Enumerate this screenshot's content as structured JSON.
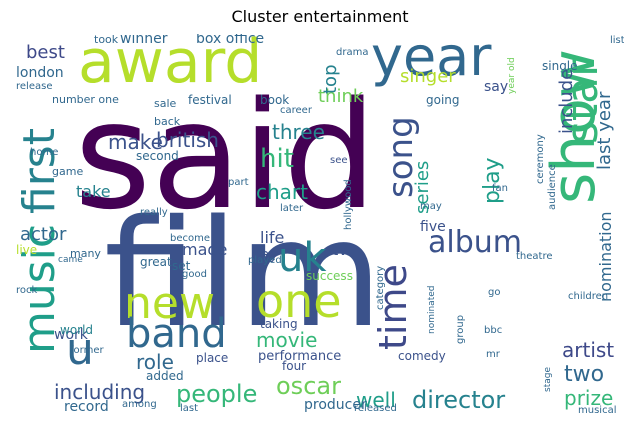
{
  "title": "Cluster entertainment",
  "colors": {
    "said": "#440154",
    "film": "#3b528b",
    "award": "#b5de2b",
    "year": "#31688e",
    "show": "#35b779",
    "star": "#35b779",
    "music": "#1f9e89",
    "first": "#26828e",
    "new": "#b5de2b",
    "one": "#b5de2b",
    "band": "#31688e",
    "uk": "#26828e",
    "u": "#31688e",
    "album": "#3b528b",
    "time": "#3e4989"
  },
  "words": {
    "said": "said",
    "film": "film",
    "award": "award",
    "year": "year",
    "show": "show",
    "star": "star",
    "music": "music",
    "first": "first",
    "new": "new",
    "one": "one",
    "band": "band",
    "uk": "uk",
    "u": "u",
    "album": "album",
    "time": "time",
    "song": "song",
    "hit": "hit",
    "chart": "chart",
    "three": "three",
    "make": "make",
    "british": "british",
    "people": "people",
    "oscar": "oscar",
    "director": "director",
    "including": "including",
    "two": "two",
    "prize": "prize",
    "artist": "artist",
    "movie": "movie",
    "role": "role",
    "well": "well",
    "last_year": "last year",
    "include": "include",
    "nomination": "nomination",
    "series": "series",
    "play": "play",
    "singer": "singer",
    "think": "think",
    "top": "top",
    "best": "best",
    "london": "london",
    "winner": "winner",
    "box_office": "box office",
    "actor": "actor",
    "take": "take",
    "second": "second",
    "made": "made",
    "life": "life",
    "tv": "tv",
    "day": "day",
    "five": "five",
    "work": "work",
    "record": "record",
    "world": "world",
    "added": "added",
    "producer": "producer",
    "performance": "performance",
    "comedy": "comedy",
    "taking": "taking",
    "four": "four",
    "place": "place",
    "say": "say",
    "going": "going",
    "book": "book",
    "festival": "festival",
    "sale": "sale",
    "number_one": "number one",
    "back": "back",
    "release": "release",
    "game": "game",
    "home": "home",
    "took": "took",
    "drama": "drama",
    "career": "career",
    "see": "see",
    "hollywood": "hollywood",
    "later": "later",
    "part": "part",
    "really": "really",
    "become": "become",
    "great": "great",
    "set": "set",
    "good": "good",
    "played": "played",
    "success": "success",
    "came": "came",
    "many": "many",
    "live": "live",
    "rock": "rock",
    "former": "former",
    "among": "among",
    "last": "last",
    "released": "released",
    "musical": "musical",
    "stage": "stage",
    "mr": "mr",
    "bbc": "bbc",
    "children": "children",
    "go": "go",
    "group": "group",
    "nominated": "nominated",
    "category": "category",
    "theatre": "theatre",
    "audience": "audience",
    "ceremony": "ceremony",
    "fan": "fan",
    "may": "may",
    "single": "single",
    "list": "list",
    "year_old": "year old"
  }
}
